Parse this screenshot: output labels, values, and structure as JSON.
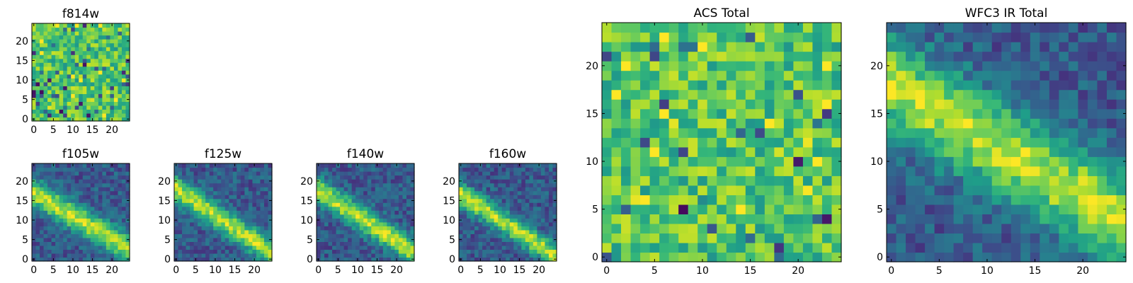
{
  "figure": {
    "description_free": true
  },
  "chart_data": [
    {
      "id": "f814w",
      "type": "heatmap",
      "title": "f814w",
      "xlabel": "",
      "ylabel": "",
      "xlim": [
        0,
        24
      ],
      "ylim": [
        0,
        24
      ],
      "grid": false,
      "colormap": "viridis",
      "pattern": "noise",
      "xticks": [
        "0",
        "5",
        "10",
        "15",
        "20"
      ],
      "yticks": [
        "0",
        "5",
        "10",
        "15",
        "20"
      ],
      "xtick_values": [
        0,
        5,
        10,
        15,
        20
      ],
      "ytick_values": [
        0,
        5,
        10,
        15,
        20
      ],
      "seed": 814
    },
    {
      "id": "f105w",
      "type": "heatmap",
      "title": "f105w",
      "xlabel": "",
      "ylabel": "",
      "xlim": [
        0,
        24
      ],
      "ylim": [
        0,
        24
      ],
      "grid": false,
      "colormap": "viridis",
      "pattern": "diagonal-streak",
      "streak": {
        "start": [
          0,
          17
        ],
        "end": [
          24,
          3
        ],
        "width": 2.2
      },
      "xticks": [
        "0",
        "5",
        "10",
        "15",
        "20"
      ],
      "yticks": [
        "0",
        "5",
        "10",
        "15",
        "20"
      ],
      "xtick_values": [
        0,
        5,
        10,
        15,
        20
      ],
      "ytick_values": [
        0,
        5,
        10,
        15,
        20
      ],
      "seed": 105
    },
    {
      "id": "f125w",
      "type": "heatmap",
      "title": "f125w",
      "xlabel": "",
      "ylabel": "",
      "xlim": [
        0,
        24
      ],
      "ylim": [
        0,
        24
      ],
      "grid": false,
      "colormap": "viridis",
      "pattern": "diagonal-streak",
      "streak": {
        "start": [
          0,
          18
        ],
        "end": [
          24,
          2
        ],
        "width": 2.0
      },
      "xticks": [
        "0",
        "5",
        "10",
        "15",
        "20"
      ],
      "yticks": [
        "0",
        "5",
        "10",
        "15",
        "20"
      ],
      "xtick_values": [
        0,
        5,
        10,
        15,
        20
      ],
      "ytick_values": [
        0,
        5,
        10,
        15,
        20
      ],
      "seed": 125
    },
    {
      "id": "f140w",
      "type": "heatmap",
      "title": "f140w",
      "xlabel": "",
      "ylabel": "",
      "xlim": [
        0,
        24
      ],
      "ylim": [
        0,
        24
      ],
      "grid": false,
      "colormap": "viridis",
      "pattern": "diagonal-streak",
      "streak": {
        "start": [
          1,
          17
        ],
        "end": [
          24,
          2
        ],
        "width": 2.0
      },
      "xticks": [
        "0",
        "5",
        "10",
        "15",
        "20"
      ],
      "yticks": [
        "0",
        "5",
        "10",
        "15",
        "20"
      ],
      "xtick_values": [
        0,
        5,
        10,
        15,
        20
      ],
      "ytick_values": [
        0,
        5,
        10,
        15,
        20
      ],
      "seed": 140
    },
    {
      "id": "f160w",
      "type": "heatmap",
      "title": "f160w",
      "xlabel": "",
      "ylabel": "",
      "xlim": [
        0,
        24
      ],
      "ylim": [
        0,
        24
      ],
      "grid": false,
      "colormap": "viridis",
      "pattern": "diagonal-streak",
      "streak": {
        "start": [
          1,
          16
        ],
        "end": [
          24,
          1
        ],
        "width": 1.8
      },
      "xticks": [
        "0",
        "5",
        "10",
        "15",
        "20"
      ],
      "yticks": [
        "0",
        "5",
        "10",
        "15",
        "20"
      ],
      "xtick_values": [
        0,
        5,
        10,
        15,
        20
      ],
      "ytick_values": [
        0,
        5,
        10,
        15,
        20
      ],
      "seed": 160
    },
    {
      "id": "acs-total",
      "type": "heatmap",
      "title": "ACS Total",
      "xlabel": "",
      "ylabel": "",
      "xlim": [
        0,
        24
      ],
      "ylim": [
        0,
        24
      ],
      "grid": false,
      "colormap": "viridis",
      "pattern": "noise",
      "xticks": [
        "0",
        "5",
        "10",
        "15",
        "20"
      ],
      "yticks": [
        "0",
        "5",
        "10",
        "15",
        "20"
      ],
      "xtick_values": [
        0,
        5,
        10,
        15,
        20
      ],
      "ytick_values": [
        0,
        5,
        10,
        15,
        20
      ],
      "seed": 901
    },
    {
      "id": "wfc3-ir-total",
      "type": "heatmap",
      "title": "WFC3 IR Total",
      "xlabel": "",
      "ylabel": "",
      "xlim": [
        0,
        24
      ],
      "ylim": [
        0,
        24
      ],
      "grid": false,
      "colormap": "viridis",
      "pattern": "diagonal-streak",
      "streak": {
        "start": [
          0,
          18
        ],
        "end": [
          24,
          4
        ],
        "width": 3.0
      },
      "xticks": [
        "0",
        "5",
        "10",
        "15",
        "20"
      ],
      "yticks": [
        "0",
        "5",
        "10",
        "15",
        "20"
      ],
      "xtick_values": [
        0,
        5,
        10,
        15,
        20
      ],
      "ytick_values": [
        0,
        5,
        10,
        15,
        20
      ],
      "seed": 302
    }
  ]
}
